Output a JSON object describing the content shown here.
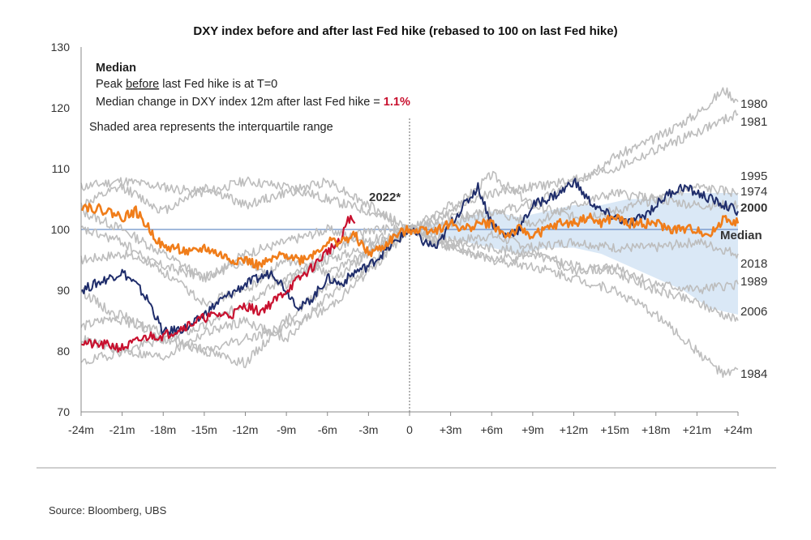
{
  "title": "DXY index before and after last Fed hike (rebased to 100 on last Fed hike)",
  "annotation": {
    "heading": "Median",
    "line1_pre": "Peak ",
    "line1_u": "before",
    "line1_post": "  last Fed hike is at T=0",
    "line2_pre": "Median change in DXY index 12m after last Fed hike = ",
    "line2_value": "1.1%",
    "shaded_note": "Shaded area represents the interquartile range"
  },
  "source": "Source: Bloomberg, UBS",
  "colors": {
    "grey": "#bdbdbd",
    "navy": "#1f2d6b",
    "red": "#c8102e",
    "orange": "#f07d1a",
    "band": "#d6e6f5",
    "baseline": "#6b8fc8"
  },
  "chart_data": {
    "type": "line",
    "title": "DXY index before and after last Fed hike (rebased to 100 on last Fed hike)",
    "ylim": [
      70,
      130
    ],
    "yticks": [
      70,
      80,
      90,
      100,
      110,
      120,
      130
    ],
    "xlim": [
      -24,
      24
    ],
    "xticks": [
      -24,
      -21,
      -18,
      -15,
      -12,
      -9,
      -6,
      -3,
      0,
      3,
      6,
      9,
      12,
      15,
      18,
      21,
      24
    ],
    "xtick_labels": [
      "-24m",
      "-21m",
      "-18m",
      "-15m",
      "-12m",
      "-9m",
      "-6m",
      "-3m",
      "0",
      "+3m",
      "+6m",
      "+9m",
      "+12m",
      "+15m",
      "+18m",
      "+21m",
      "+24m"
    ],
    "reference_line": 100,
    "vertical_marker": 0,
    "interquartile_band": {
      "x": [
        0,
        2,
        4,
        6,
        8,
        10,
        12,
        14,
        16,
        18,
        20,
        22,
        24
      ],
      "lower": [
        100,
        99,
        98,
        97,
        96,
        97,
        97,
        96,
        94,
        92,
        90,
        87,
        86
      ],
      "upper": [
        100,
        101,
        102,
        103,
        102,
        103,
        104,
        104,
        105,
        105,
        106,
        106,
        106
      ]
    },
    "series": [
      {
        "name": "1980",
        "color": "grey",
        "width": 1.6,
        "x": [
          0,
          3,
          6,
          9,
          12,
          15,
          18,
          21,
          23,
          24
        ],
        "y": [
          100,
          103,
          109,
          104,
          108,
          112,
          115,
          119,
          123,
          121
        ]
      },
      {
        "name": "1981",
        "color": "grey",
        "width": 1.6,
        "x": [
          0,
          3,
          6,
          9,
          12,
          15,
          18,
          21,
          24
        ],
        "y": [
          100,
          104,
          106,
          107,
          108,
          110,
          113,
          116,
          119
        ]
      },
      {
        "name": "1995",
        "color": "grey",
        "width": 1.6,
        "x": [
          0,
          3,
          6,
          9,
          12,
          15,
          18,
          21,
          24
        ],
        "y": [
          100,
          102,
          103,
          101,
          104,
          106,
          105,
          107,
          106
        ]
      },
      {
        "name": "1974",
        "color": "grey",
        "width": 1.6,
        "x": [
          0,
          3,
          6,
          9,
          12,
          15,
          18,
          21,
          24
        ],
        "y": [
          100,
          101,
          103,
          104,
          102,
          103,
          105,
          104,
          104
        ]
      },
      {
        "name": "2018",
        "color": "grey",
        "width": 1.6,
        "x": [
          0,
          3,
          6,
          9,
          12,
          15,
          18,
          21,
          24
        ],
        "y": [
          100,
          98,
          99,
          97,
          98,
          97,
          97,
          98,
          96
        ]
      },
      {
        "name": "1989",
        "color": "grey",
        "width": 1.6,
        "x": [
          0,
          3,
          6,
          9,
          12,
          15,
          18,
          21,
          24
        ],
        "y": [
          100,
          97,
          95,
          96,
          93,
          94,
          91,
          90,
          91
        ]
      },
      {
        "name": "2006",
        "color": "grey",
        "width": 1.6,
        "x": [
          0,
          3,
          6,
          9,
          12,
          15,
          18,
          21,
          24
        ],
        "y": [
          100,
          98,
          97,
          96,
          94,
          93,
          90,
          88,
          85
        ]
      },
      {
        "name": "1984",
        "color": "grey",
        "width": 1.6,
        "x": [
          0,
          3,
          6,
          9,
          12,
          15,
          18,
          21,
          23,
          24
        ],
        "y": [
          100,
          97,
          95,
          94,
          92,
          90,
          86,
          80,
          76,
          77
        ]
      },
      {
        "name": "",
        "color": "grey",
        "width": 1.6,
        "x": [
          -24,
          -21,
          -18,
          -15,
          -12,
          -9,
          -6,
          -3,
          0
        ],
        "y": [
          107,
          108,
          107,
          106,
          108,
          107,
          105,
          103,
          100
        ]
      },
      {
        "name": "",
        "color": "grey",
        "width": 1.6,
        "x": [
          -24,
          -21,
          -18,
          -15,
          -12,
          -9,
          -6,
          -3,
          0
        ],
        "y": [
          104,
          107,
          103,
          107,
          104,
          106,
          108,
          104,
          100
        ]
      },
      {
        "name": "",
        "color": "grey",
        "width": 1.6,
        "x": [
          -24,
          -21,
          -18,
          -15,
          -12,
          -9,
          -6,
          -3,
          0
        ],
        "y": [
          103,
          100,
          96,
          92,
          95,
          91,
          96,
          100,
          100
        ]
      },
      {
        "name": "",
        "color": "grey",
        "width": 1.6,
        "x": [
          -24,
          -21,
          -18,
          -15,
          -12,
          -9,
          -6,
          -3,
          0
        ],
        "y": [
          84,
          86,
          82,
          84,
          88,
          92,
          95,
          97,
          100
        ]
      },
      {
        "name": "",
        "color": "grey",
        "width": 1.6,
        "x": [
          -24,
          -21,
          -18,
          -15,
          -12,
          -9,
          -6,
          -3,
          0
        ],
        "y": [
          90,
          85,
          83,
          80,
          82,
          84,
          87,
          93,
          100
        ]
      },
      {
        "name": "",
        "color": "grey",
        "width": 1.6,
        "x": [
          -24,
          -21,
          -18,
          -15,
          -12,
          -9,
          -6,
          -3,
          0
        ],
        "y": [
          82,
          80,
          79,
          83,
          85,
          82,
          89,
          94,
          100
        ]
      },
      {
        "name": "",
        "color": "grey",
        "width": 1.6,
        "x": [
          -24,
          -21,
          -18,
          -15,
          -12,
          -9,
          -6,
          -3,
          0
        ],
        "y": [
          95,
          96,
          94,
          92,
          96,
          98,
          100,
          98,
          100
        ]
      },
      {
        "name": "",
        "color": "grey",
        "width": 1.6,
        "x": [
          -24,
          -21,
          -18,
          -15,
          -12,
          -9,
          -6,
          -3,
          0
        ],
        "y": [
          100,
          98,
          93,
          88,
          90,
          95,
          93,
          96,
          100
        ]
      },
      {
        "name": "",
        "color": "grey",
        "width": 1.6,
        "x": [
          -24,
          -21,
          -18,
          -15,
          -12,
          -9,
          -6,
          -3,
          0
        ],
        "y": [
          78,
          80,
          82,
          80,
          78,
          85,
          91,
          96,
          100
        ]
      },
      {
        "name": "2000",
        "color": "navy",
        "width": 2,
        "x": [
          -24,
          -22,
          -21,
          -20,
          -19,
          -18,
          -16,
          -14,
          -12,
          -10,
          -9,
          -8,
          -7,
          -6,
          -5,
          -4,
          -3,
          -2,
          -1,
          0,
          1,
          2,
          3,
          4,
          5,
          6,
          7,
          8,
          9,
          10,
          11,
          12,
          13,
          14,
          15,
          16,
          17,
          18,
          19,
          20,
          21,
          22,
          23,
          24
        ],
        "y": [
          90,
          92,
          93,
          91,
          88,
          83,
          84,
          88,
          91,
          93,
          90,
          87,
          89,
          92,
          91,
          93,
          94,
          96,
          98,
          100,
          98,
          97,
          101,
          104,
          107,
          101,
          99,
          100,
          104,
          105,
          106,
          108,
          105,
          103,
          102,
          101,
          102,
          104,
          106,
          107,
          106,
          105,
          104,
          103
        ]
      },
      {
        "name": "2022*",
        "color": "red",
        "width": 2.2,
        "x": [
          -24,
          -23,
          -22,
          -21,
          -20,
          -19,
          -18,
          -17,
          -16,
          -15,
          -14,
          -13,
          -12,
          -11,
          -10,
          -9,
          -8,
          -7,
          -6,
          -5,
          -4.5,
          -4
        ],
        "y": [
          81.5,
          81,
          81,
          80.5,
          81.5,
          82.5,
          82.5,
          83.5,
          84.5,
          85.5,
          86,
          86,
          87.5,
          86.5,
          88,
          90,
          92,
          94,
          96.5,
          98,
          102,
          101
        ]
      },
      {
        "name": "Median",
        "color": "orange",
        "width": 2.6,
        "x": [
          -24,
          -22,
          -21,
          -20,
          -19,
          -18,
          -17,
          -16,
          -15,
          -14,
          -13,
          -12,
          -11,
          -10,
          -9,
          -8,
          -7,
          -6,
          -5,
          -4,
          -3,
          -2,
          -1,
          0,
          1,
          2,
          3,
          4,
          5,
          6,
          7,
          8,
          9,
          10,
          11,
          12,
          13,
          14,
          15,
          16,
          17,
          18,
          19,
          20,
          21,
          22,
          23,
          24
        ],
        "y": [
          104,
          103,
          102,
          103,
          100,
          97,
          97,
          96,
          97,
          96,
          95,
          95,
          94,
          95,
          96,
          95,
          96,
          98,
          98,
          99,
          96,
          97,
          99,
          100,
          100,
          100,
          101,
          100,
          101,
          101,
          99,
          100,
          99,
          100,
          101,
          101,
          102,
          101,
          102,
          101,
          101,
          101,
          100,
          100,
          100,
          99,
          102,
          101
        ]
      }
    ]
  }
}
